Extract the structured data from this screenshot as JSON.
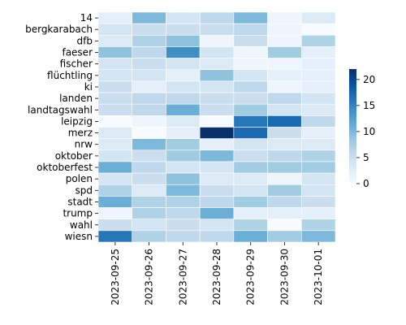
{
  "chart_data": {
    "type": "heatmap",
    "title": "",
    "xlabel": "",
    "ylabel": "",
    "x": [
      "2023-09-25",
      "2023-09-26",
      "2023-09-27",
      "2023-09-28",
      "2023-09-29",
      "2023-09-30",
      "2023-10-01"
    ],
    "y": [
      "14",
      "bergkarabach",
      "dfb",
      "faeser",
      "fischer",
      "flüchtling",
      "ki",
      "landen",
      "landtagswahl",
      "leipzig",
      "merz",
      "nrw",
      "oktober",
      "oktoberfest",
      "polen",
      "spd",
      "stadt",
      "trump",
      "wahl",
      "wiesn"
    ],
    "values": [
      [
        2,
        10,
        4,
        6,
        10,
        1,
        3
      ],
      [
        4,
        5,
        5,
        5,
        6,
        1,
        0
      ],
      [
        3,
        7,
        9,
        1,
        5,
        1,
        7
      ],
      [
        9,
        6,
        14,
        4,
        1,
        8,
        2
      ],
      [
        4,
        5,
        4,
        3,
        1,
        1,
        2
      ],
      [
        4,
        4,
        2,
        9,
        4,
        2,
        2
      ],
      [
        5,
        2,
        4,
        4,
        6,
        1,
        2
      ],
      [
        5,
        6,
        6,
        5,
        5,
        6,
        4
      ],
      [
        5,
        6,
        11,
        5,
        8,
        4,
        3
      ],
      [
        0,
        1,
        3,
        0,
        16,
        17,
        6
      ],
      [
        3,
        0,
        2,
        22,
        17,
        5,
        2
      ],
      [
        3,
        10,
        8,
        2,
        4,
        3,
        3
      ],
      [
        4,
        5,
        8,
        10,
        5,
        6,
        7
      ],
      [
        11,
        6,
        4,
        4,
        8,
        8,
        8
      ],
      [
        4,
        5,
        9,
        3,
        3,
        1,
        4
      ],
      [
        7,
        3,
        10,
        5,
        4,
        8,
        4
      ],
      [
        11,
        7,
        7,
        6,
        8,
        6,
        5
      ],
      [
        1,
        7,
        6,
        11,
        2,
        2,
        2
      ],
      [
        5,
        4,
        5,
        4,
        7,
        0,
        7
      ],
      [
        16,
        7,
        6,
        6,
        11,
        8,
        10
      ]
    ],
    "vmin": 0,
    "vmax": 22,
    "colormap": "Blues",
    "colorbar_ticks": [
      0,
      5,
      10,
      15,
      20
    ],
    "gridlines": "white"
  }
}
